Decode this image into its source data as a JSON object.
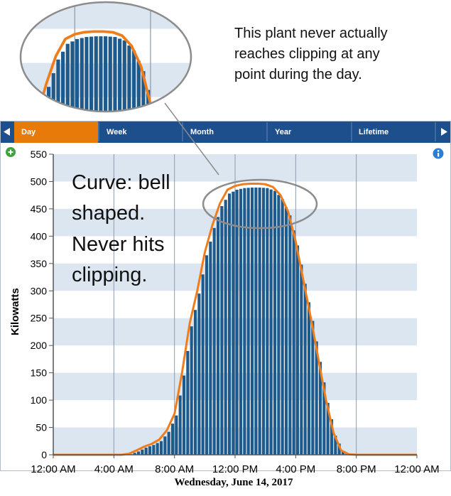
{
  "tabs": {
    "prev_icon": "triangle-left-icon",
    "next_icon": "triangle-right-icon",
    "items": [
      {
        "label": "Day",
        "active": true
      },
      {
        "label": "Week",
        "active": false
      },
      {
        "label": "Month",
        "active": false
      },
      {
        "label": "Year",
        "active": false
      },
      {
        "label": "Lifetime",
        "active": false
      }
    ],
    "colors": {
      "bar": "#1d4f8c",
      "active": "#e87a0a"
    }
  },
  "icons": {
    "zoom": "zoom-plus-icon",
    "info": "info-icon"
  },
  "annotations": {
    "note_lines": [
      "This plant never actually",
      "reaches clipping at any",
      "point during the day."
    ],
    "callout_lines": [
      "Curve: bell",
      "shaped.",
      "Never hits",
      "clipping."
    ]
  },
  "colors": {
    "bars": "#1f5a8c",
    "curve": "#f07d1c",
    "band": "#dce6f1",
    "ellipse": "#8c8c8c"
  },
  "chart_data": {
    "type": "bar",
    "xlabel": "Wednesday, June 14, 2017",
    "ylabel": "Kilowatts",
    "ylim": [
      0,
      550
    ],
    "yticks": [
      "0",
      "50",
      "100",
      "150",
      "200",
      "250",
      "300",
      "350",
      "400",
      "450",
      "500",
      "550"
    ],
    "xticks": [
      "12:00 AM",
      "4:00 AM",
      "8:00 AM",
      "12:00 PM",
      "4:00 PM",
      "8:00 PM",
      "12:00 AM"
    ],
    "grid": true,
    "series": [
      {
        "type": "line",
        "x_hours": [
          0,
          4.5,
          5,
          5.5,
          6,
          6.5,
          7,
          7.5,
          8,
          8.5,
          9,
          9.5,
          10,
          10.5,
          11,
          11.5,
          12,
          12.5,
          13,
          13.5,
          14,
          14.5,
          15,
          15.5,
          16,
          16.5,
          17,
          17.5,
          18,
          18.5,
          19,
          19.5,
          20,
          20.5,
          24
        ],
        "values": [
          0,
          0,
          2,
          8,
          15,
          20,
          28,
          45,
          75,
          150,
          240,
          300,
          370,
          420,
          460,
          485,
          492,
          495,
          496,
          496,
          495,
          490,
          475,
          445,
          390,
          320,
          250,
          175,
          100,
          40,
          8,
          1,
          0,
          0,
          0
        ]
      },
      {
        "type": "bar",
        "interval_minutes": 15,
        "x_hours": [
          5,
          5.5,
          6,
          6.5,
          7,
          7.5,
          8,
          8.5,
          9,
          9.5,
          10,
          10.5,
          11,
          11.5,
          12,
          12.5,
          13,
          13.5,
          14,
          14.5,
          15,
          15.5,
          16,
          16.5,
          17,
          17.5,
          18,
          18.5,
          19,
          19.5,
          20
        ],
        "values": [
          1,
          6,
          13,
          18,
          25,
          42,
          72,
          145,
          235,
          295,
          365,
          415,
          455,
          478,
          485,
          488,
          489,
          489,
          488,
          483,
          468,
          438,
          383,
          313,
          245,
          170,
          95,
          35,
          6,
          1,
          0
        ]
      }
    ]
  }
}
